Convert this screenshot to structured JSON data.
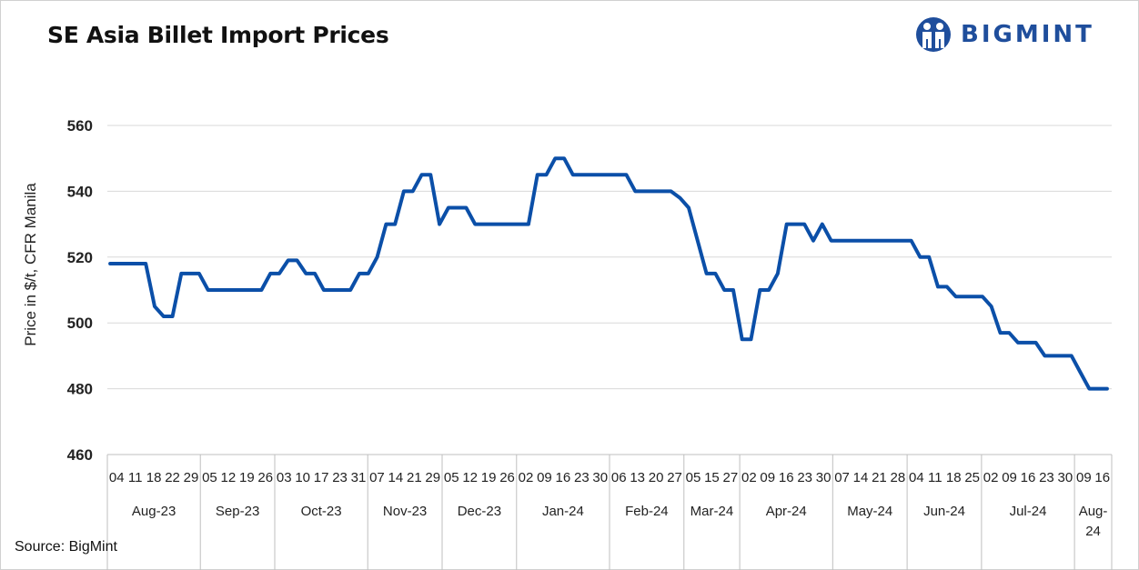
{
  "title": "SE Asia Billet Import Prices",
  "logo": {
    "text": "BIGMINT",
    "icon": "bigmint-people-icon",
    "color": "#1f4e9c"
  },
  "source": "Source: BigMint",
  "chart_data": {
    "type": "line",
    "ylabel": "Price in $/t, CFR Manila",
    "ylim": [
      460,
      560
    ],
    "yticks": [
      460,
      480,
      500,
      520,
      540,
      560
    ],
    "grid": true,
    "line_color": "#0b4fa8",
    "x_day_labels": [
      "04",
      "11",
      "18",
      "22",
      "29",
      "05",
      "12",
      "19",
      "26",
      "03",
      "10",
      "17",
      "23",
      "31",
      "07",
      "14",
      "21",
      "29",
      "05",
      "12",
      "19",
      "26",
      "02",
      "09",
      "16",
      "23",
      "30",
      "06",
      "13",
      "20",
      "27",
      "05",
      "15",
      "27",
      "02",
      "09",
      "16",
      "23",
      "30",
      "07",
      "14",
      "21",
      "28",
      "04",
      "11",
      "18",
      "25",
      "02",
      "09",
      "16",
      "23",
      "30",
      "09",
      "16"
    ],
    "months": [
      {
        "label": "Aug-23",
        "count": 5
      },
      {
        "label": "Sep-23",
        "count": 4
      },
      {
        "label": "Oct-23",
        "count": 5
      },
      {
        "label": "Nov-23",
        "count": 4
      },
      {
        "label": "Dec-23",
        "count": 4
      },
      {
        "label": "Jan-24",
        "count": 5
      },
      {
        "label": "Feb-24",
        "count": 4
      },
      {
        "label": "Mar-24",
        "count": 3
      },
      {
        "label": "Apr-24",
        "count": 5
      },
      {
        "label": "May-24",
        "count": 4
      },
      {
        "label": "Jun-24",
        "count": 4
      },
      {
        "label": "Jul-24",
        "count": 5
      },
      {
        "label": "Aug-24",
        "count": 2
      }
    ],
    "series": [
      {
        "points": [
          [
            0,
            518
          ],
          [
            0.5,
            518
          ],
          [
            1,
            518
          ],
          [
            1.5,
            518
          ],
          [
            2,
            518
          ],
          [
            2.5,
            505
          ],
          [
            3,
            502
          ],
          [
            3.5,
            502
          ],
          [
            4,
            515
          ],
          [
            4.5,
            515
          ],
          [
            5,
            515
          ],
          [
            5.5,
            510
          ],
          [
            6,
            510
          ],
          [
            6.5,
            510
          ],
          [
            7,
            510
          ],
          [
            7.5,
            510
          ],
          [
            8,
            510
          ],
          [
            8.5,
            510
          ],
          [
            9,
            515
          ],
          [
            9.5,
            515
          ],
          [
            10,
            519
          ],
          [
            10.5,
            519
          ],
          [
            11,
            515
          ],
          [
            11.5,
            515
          ],
          [
            12,
            510
          ],
          [
            12.5,
            510
          ],
          [
            13,
            510
          ],
          [
            13.5,
            510
          ],
          [
            14,
            515
          ],
          [
            14.5,
            515
          ],
          [
            15,
            520
          ],
          [
            15.5,
            530
          ],
          [
            16,
            530
          ],
          [
            16.5,
            540
          ],
          [
            17,
            540
          ],
          [
            17.5,
            545
          ],
          [
            18,
            545
          ],
          [
            18.5,
            530
          ],
          [
            19,
            535
          ],
          [
            19.5,
            535
          ],
          [
            20,
            535
          ],
          [
            20.5,
            530
          ],
          [
            21,
            530
          ],
          [
            21.5,
            530
          ],
          [
            22,
            530
          ],
          [
            22.5,
            530
          ],
          [
            23,
            530
          ],
          [
            23.5,
            530
          ],
          [
            24,
            545
          ],
          [
            24.5,
            545
          ],
          [
            25,
            550
          ],
          [
            25.5,
            550
          ],
          [
            26,
            545
          ],
          [
            26.5,
            545
          ],
          [
            27,
            545
          ],
          [
            27.5,
            545
          ],
          [
            28,
            545
          ],
          [
            28.5,
            545
          ],
          [
            29,
            545
          ],
          [
            29.5,
            540
          ],
          [
            30,
            540
          ],
          [
            30.5,
            540
          ],
          [
            31,
            540
          ],
          [
            31.5,
            540
          ],
          [
            32,
            538
          ],
          [
            32.5,
            535
          ],
          [
            33,
            525
          ],
          [
            33.5,
            515
          ],
          [
            34,
            515
          ],
          [
            34.5,
            510
          ],
          [
            35,
            510
          ],
          [
            35.5,
            495
          ],
          [
            36,
            495
          ],
          [
            36.5,
            510
          ],
          [
            37,
            510
          ],
          [
            37.5,
            515
          ],
          [
            38,
            530
          ],
          [
            38.5,
            530
          ],
          [
            39,
            530
          ],
          [
            39.5,
            525
          ],
          [
            40,
            530
          ],
          [
            40.5,
            525
          ],
          [
            41,
            525
          ],
          [
            41.5,
            525
          ],
          [
            42,
            525
          ],
          [
            42.5,
            525
          ],
          [
            43,
            525
          ],
          [
            43.5,
            525
          ],
          [
            44,
            525
          ],
          [
            44.5,
            525
          ],
          [
            45,
            525
          ],
          [
            45.5,
            520
          ],
          [
            46,
            520
          ],
          [
            46.5,
            511
          ],
          [
            47,
            511
          ],
          [
            47.5,
            508
          ],
          [
            48,
            508
          ],
          [
            48.5,
            508
          ],
          [
            49,
            508
          ],
          [
            49.5,
            505
          ],
          [
            50,
            497
          ],
          [
            50.5,
            497
          ],
          [
            51,
            494
          ],
          [
            51.5,
            494
          ],
          [
            52,
            494
          ],
          [
            52.5,
            490
          ],
          [
            53,
            490
          ],
          [
            53.5,
            490
          ],
          [
            54,
            490
          ],
          [
            54.5,
            485
          ],
          [
            55,
            480
          ],
          [
            55.5,
            480
          ],
          [
            56,
            480
          ]
        ]
      }
    ]
  }
}
